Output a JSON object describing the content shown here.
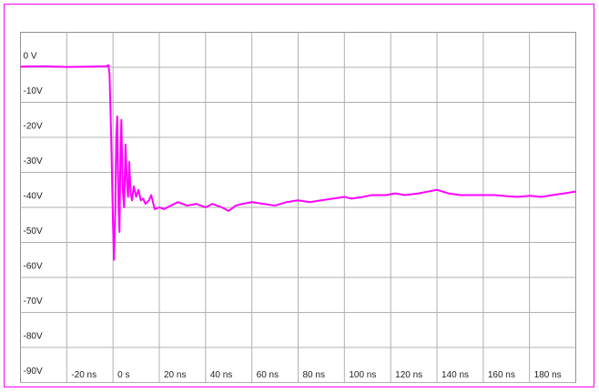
{
  "chart_data": {
    "type": "line",
    "color": "#ff00ff",
    "grid": true,
    "xlim": [
      -40,
      200
    ],
    "ylim": [
      -90,
      10
    ],
    "xticks": [
      {
        "value": -20,
        "label": "-20 ns"
      },
      {
        "value": 0,
        "label": "0 s"
      },
      {
        "value": 20,
        "label": "20 ns"
      },
      {
        "value": 40,
        "label": "40 ns"
      },
      {
        "value": 60,
        "label": "60 ns"
      },
      {
        "value": 80,
        "label": "80 ns"
      },
      {
        "value": 100,
        "label": "100 ns"
      },
      {
        "value": 120,
        "label": "120 ns"
      },
      {
        "value": 140,
        "label": "140 ns"
      },
      {
        "value": 160,
        "label": "160 ns"
      },
      {
        "value": 180,
        "label": "180 ns"
      }
    ],
    "yticks": [
      {
        "value": 0,
        "label": "0 V"
      },
      {
        "value": -10,
        "label": "-10V"
      },
      {
        "value": -20,
        "label": "-20V"
      },
      {
        "value": -30,
        "label": "-30V"
      },
      {
        "value": -40,
        "label": "-40V"
      },
      {
        "value": -50,
        "label": "-50V"
      },
      {
        "value": -60,
        "label": "-60V"
      },
      {
        "value": -70,
        "label": "-70V"
      },
      {
        "value": -80,
        "label": "-80V"
      },
      {
        "value": -90,
        "label": "-90V"
      }
    ],
    "x": [
      -40,
      -30,
      -20,
      -10,
      -3,
      -2,
      -1.5,
      -0.8,
      0,
      0.4,
      1,
      1.4,
      1.8,
      2.4,
      2.8,
      3.2,
      3.6,
      4.2,
      4.8,
      5.4,
      6,
      6.5,
      7,
      7.6,
      8.2,
      9,
      10,
      11,
      12,
      13,
      14,
      15.5,
      16.5,
      18,
      20,
      22,
      25,
      28,
      32,
      36,
      40,
      43,
      47,
      50,
      53,
      56,
      60,
      65,
      70,
      75,
      80,
      85,
      90,
      95,
      100,
      103,
      108,
      112,
      118,
      122,
      126,
      132,
      136,
      140,
      145,
      150,
      155,
      160,
      165,
      170,
      175,
      180,
      185,
      190,
      195,
      200
    ],
    "values": [
      0.2,
      0.3,
      0.1,
      0.2,
      0.3,
      0.6,
      -2,
      -20,
      -45,
      -55,
      -40,
      -20,
      -14,
      -40,
      -47,
      -25,
      -15,
      -35,
      -40,
      -22,
      -33,
      -37,
      -27,
      -36,
      -38,
      -34,
      -37,
      -35,
      -38,
      -37.5,
      -39,
      -38,
      -36.5,
      -40.5,
      -40,
      -40.5,
      -39.5,
      -38.5,
      -39.5,
      -39,
      -40,
      -39,
      -40,
      -41,
      -39.5,
      -39,
      -38.5,
      -39,
      -39.5,
      -38.5,
      -38,
      -38.5,
      -38,
      -37.5,
      -37,
      -37.5,
      -37,
      -36.5,
      -36.5,
      -36,
      -36.5,
      -36,
      -35.5,
      -35,
      -36,
      -36.5,
      -36.5,
      -36.5,
      -36.5,
      -36.8,
      -37,
      -36.7,
      -37,
      -36.5,
      -36,
      -35.5
    ]
  }
}
